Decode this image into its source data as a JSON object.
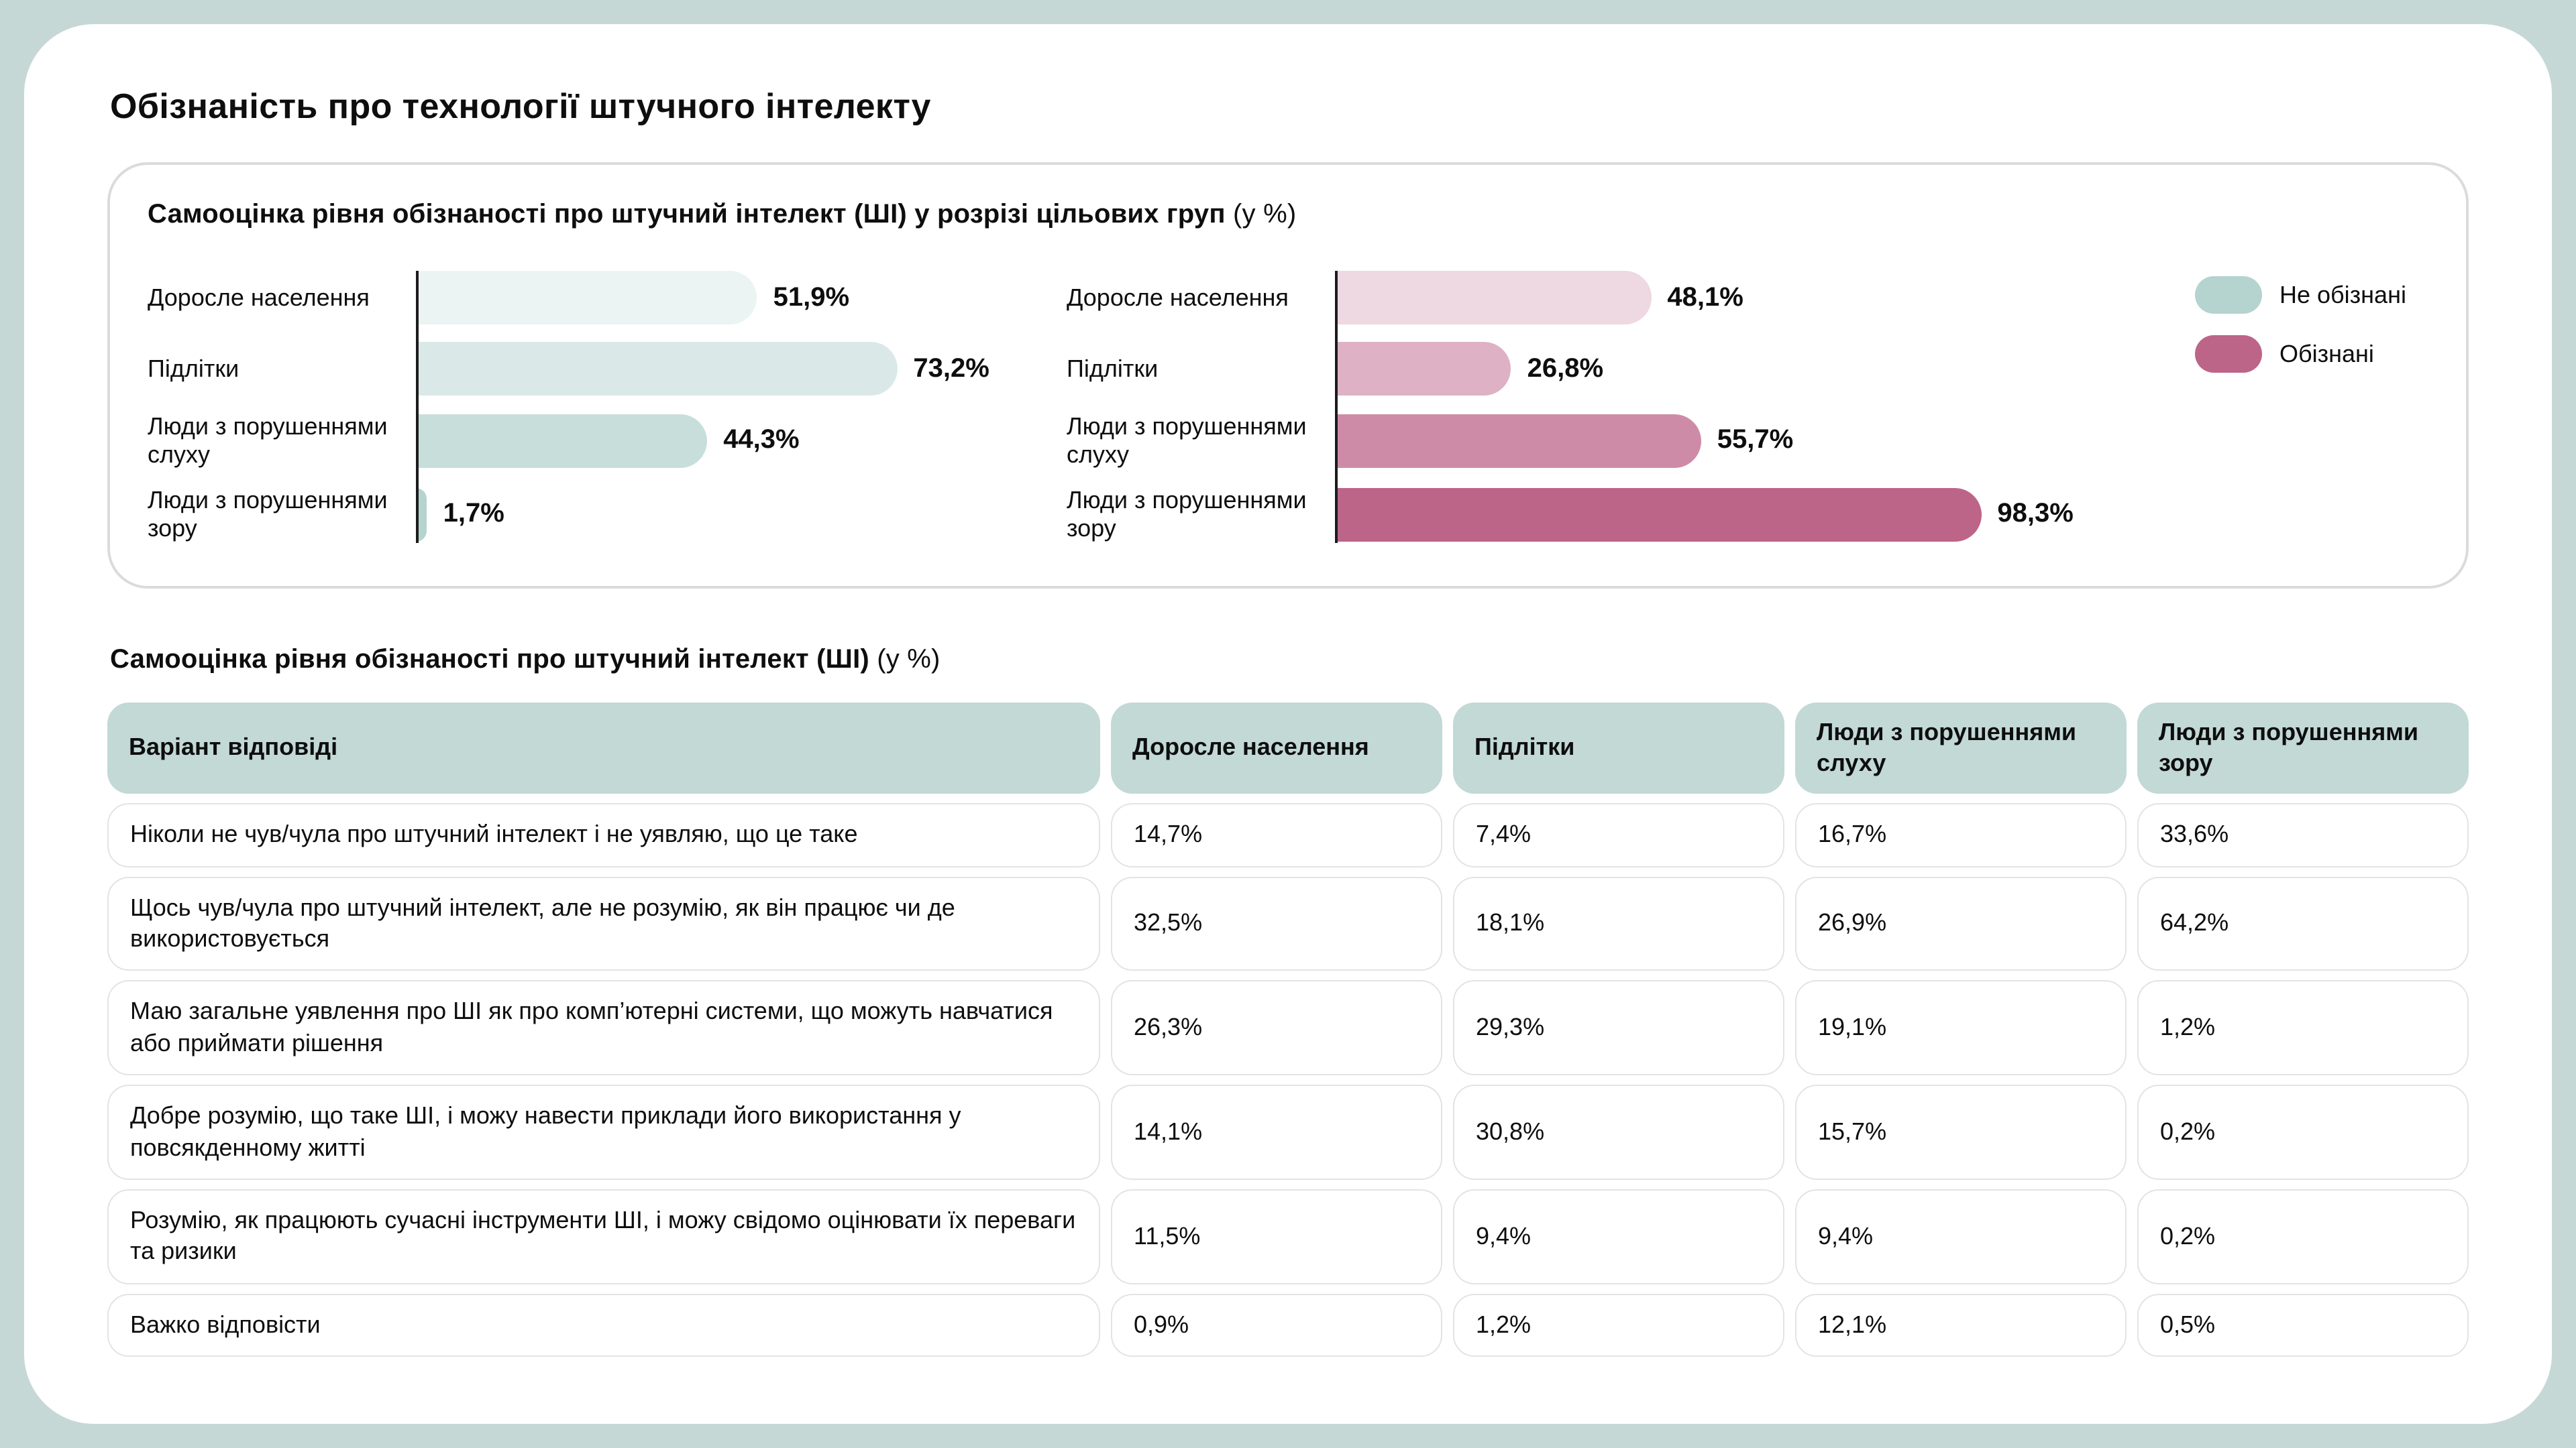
{
  "page": {
    "title": "Обізнаність про технології штучного інтелекту"
  },
  "chart_card": {
    "title_bold": "Самооцінка рівня обізнаності про штучний інтелект (ШІ) у розрізі цільових груп",
    "title_suffix": " (у %)"
  },
  "chart_data": {
    "type": "bar",
    "orientation": "horizontal",
    "title": "Самооцінка рівня обізнаності про штучний інтелект (ШІ) у розрізі цільових груп (у %)",
    "categories": [
      "Доросле населення",
      "Підлітки",
      "Люди з порушеннями слуху",
      "Люди з порушеннями зору"
    ],
    "series": [
      {
        "name": "Не обізнані",
        "color": "#b5d3cf",
        "values": [
          51.9,
          73.2,
          44.3,
          1.7
        ],
        "labels": [
          "51,9%",
          "73,2%",
          "44,3%",
          "1,7%"
        ]
      },
      {
        "name": "Обізнані",
        "color": "#bd6489",
        "values": [
          48.1,
          26.8,
          55.7,
          98.3
        ],
        "labels": [
          "48,1%",
          "26,8%",
          "55,7%",
          "98,3%"
        ]
      }
    ],
    "row_opacities": [
      0.25,
      0.5,
      0.75,
      1
    ],
    "xlim": [
      0,
      100
    ],
    "legend_position": "right",
    "grid": false
  },
  "legend": [
    {
      "label": "Не обізнані",
      "color": "#b5d3cf"
    },
    {
      "label": "Обізнані",
      "color": "#bd6489"
    }
  ],
  "table": {
    "title_bold": "Самооцінка рівня обізнаності про штучний інтелект (ШІ)",
    "title_suffix": " (у %)",
    "headers": [
      "Варіант відповіді",
      "Доросле населення",
      "Підлітки",
      "Люди з порушеннями слуху",
      "Люди з порушеннями зору"
    ],
    "rows": [
      {
        "label": "Ніколи не чув/чула про штучний інтелект і не уявляю, що це таке",
        "values": [
          "14,7%",
          "7,4%",
          "16,7%",
          "33,6%"
        ]
      },
      {
        "label": "Щось чув/чула про штучний інтелект, але не розумію, як він працює чи де використовується",
        "values": [
          "32,5%",
          "18,1%",
          "26,9%",
          "64,2%"
        ]
      },
      {
        "label": "Маю загальне уявлення про ШІ як про комп’ютерні системи, що можуть навчатися або приймати рішення",
        "values": [
          "26,3%",
          "29,3%",
          "19,1%",
          "1,2%"
        ]
      },
      {
        "label": "Добре розумію, що таке ШІ, і можу навести приклади його використання у повсякденному житті",
        "values": [
          "14,1%",
          "30,8%",
          "15,7%",
          "0,2%"
        ]
      },
      {
        "label": "Розумію, як працюють сучасні інструменти ШІ, і можу свідомо оцінювати їх переваги та ризики",
        "values": [
          "11,5%",
          "9,4%",
          "9,4%",
          "0,2%"
        ]
      },
      {
        "label": "Важко відповісти",
        "values": [
          "0,9%",
          "1,2%",
          "12,1%",
          "0,5%"
        ]
      }
    ]
  },
  "colors": {
    "page_background": "#c6d8d5",
    "sheet_background": "#ffffff",
    "header_cell": "#c2d9d6",
    "teal_base": "#b5d3cf",
    "pink_base": "#bd6489",
    "axis_line": "#1c1c1c",
    "card_border": "#d9dcdb"
  }
}
